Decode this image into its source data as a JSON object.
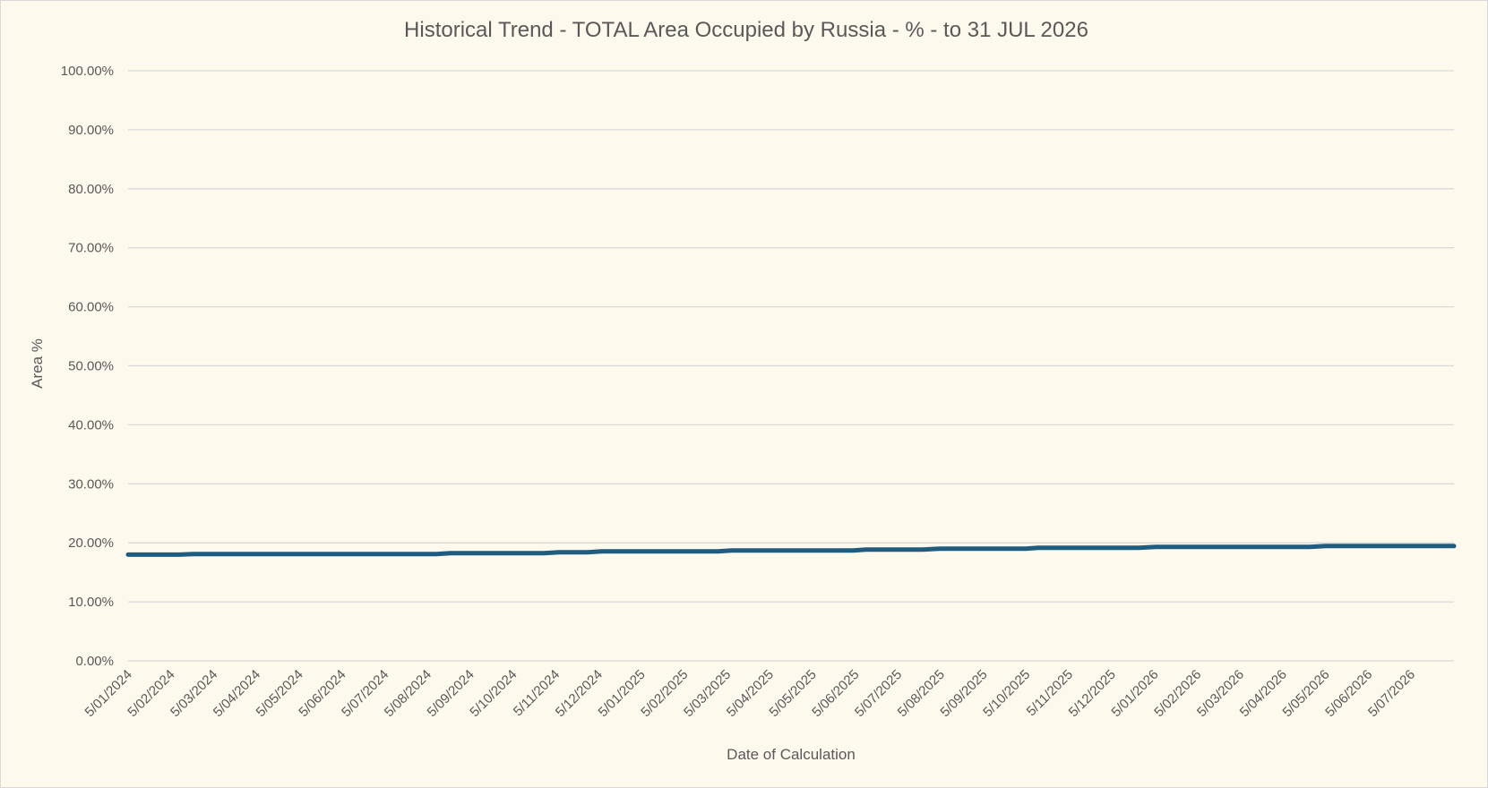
{
  "chart_data": {
    "type": "line",
    "title": "Historical Trend - TOTAL Area Occupied by Russia - % - to 31 JUL 2026",
    "xlabel": "Date of Calculation",
    "ylabel": "Area %",
    "ylim": [
      0,
      100
    ],
    "y_ticks": [
      "0.00%",
      "10.00%",
      "20.00%",
      "30.00%",
      "40.00%",
      "50.00%",
      "60.00%",
      "70.00%",
      "80.00%",
      "90.00%",
      "100.00%"
    ],
    "x_ticks": [
      "5/01/2024",
      "5/02/2024",
      "5/03/2024",
      "5/04/2024",
      "5/05/2024",
      "5/06/2024",
      "5/07/2024",
      "5/08/2024",
      "5/09/2024",
      "5/10/2024",
      "5/11/2024",
      "5/12/2024",
      "5/01/2025",
      "5/02/2025",
      "5/03/2025",
      "5/04/2025",
      "5/05/2025",
      "5/06/2025",
      "5/07/2025",
      "5/08/2025",
      "5/09/2025",
      "5/10/2025",
      "5/11/2025",
      "5/12/2025",
      "5/01/2026",
      "5/02/2026",
      "5/03/2026",
      "5/04/2026",
      "5/05/2026",
      "5/06/2026",
      "5/07/2026"
    ],
    "x_range": [
      "2024-01-05",
      "2026-07-31"
    ],
    "grid": true,
    "legend": "none",
    "line_color": "#1f5c7f",
    "series": [
      {
        "x": [
          "2024-01-05",
          "2024-02-10",
          "2024-02-20",
          "2024-08-10",
          "2024-08-20",
          "2024-10-25",
          "2024-11-05",
          "2024-11-25",
          "2024-12-05",
          "2025-02-25",
          "2025-03-07",
          "2025-06-01",
          "2025-06-10",
          "2025-07-20",
          "2025-08-01",
          "2025-10-01",
          "2025-10-10",
          "2025-12-20",
          "2026-01-01",
          "2026-04-20",
          "2026-05-01",
          "2026-07-31"
        ],
        "values": [
          18.0,
          18.0,
          18.1,
          18.1,
          18.25,
          18.25,
          18.4,
          18.4,
          18.55,
          18.55,
          18.7,
          18.7,
          18.85,
          18.85,
          19.0,
          19.0,
          19.15,
          19.15,
          19.3,
          19.3,
          19.45,
          19.45
        ]
      }
    ]
  }
}
